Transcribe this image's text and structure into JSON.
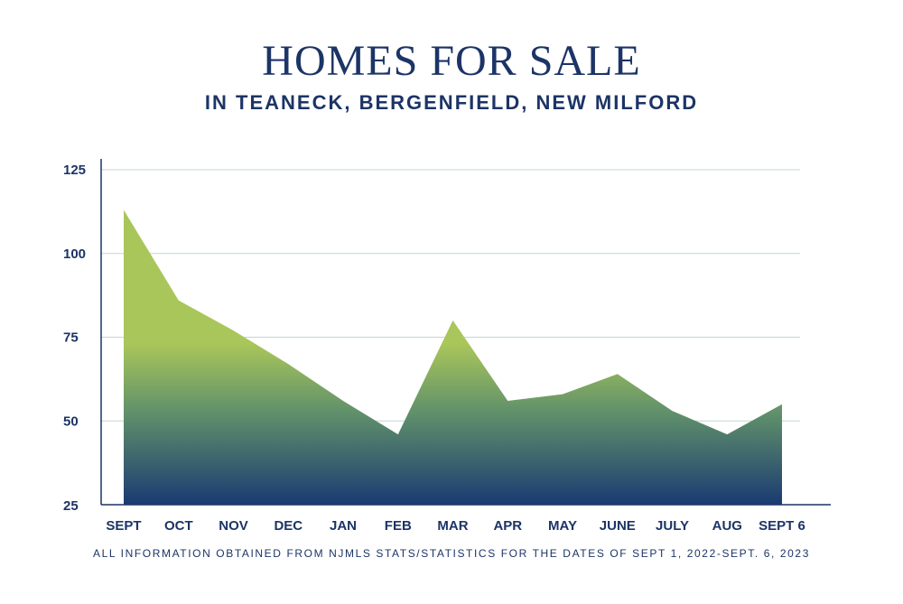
{
  "chart_data": {
    "type": "area",
    "title": "HOMES FOR SALE",
    "subtitle": "IN TEANECK, BERGENFIELD, NEW MILFORD",
    "xlabel": "",
    "ylabel": "",
    "categories": [
      "SEPT",
      "OCT",
      "NOV",
      "DEC",
      "JAN",
      "FEB",
      "MAR",
      "APR",
      "MAY",
      "JUNE",
      "JULY",
      "AUG",
      "SEPT 6"
    ],
    "values": [
      113,
      86,
      77,
      67,
      56,
      46,
      80,
      56,
      58,
      64,
      53,
      46,
      55
    ],
    "yticks": [
      25,
      50,
      75,
      100,
      125
    ],
    "ylim": [
      25,
      125
    ],
    "grid": true,
    "legend": "none",
    "footnote": "ALL INFORMATION OBTAINED FROM NJMLS STATS/STATISTICS FOR THE DATES OF SEPT 1, 2022-SEPT. 6, 2023",
    "colors": {
      "gradient_top": "#a9c65a",
      "gradient_mid": "#62926a",
      "gradient_bottom": "#1a3a72",
      "grid": "#bfd8d6",
      "text": "#1c3466"
    }
  }
}
